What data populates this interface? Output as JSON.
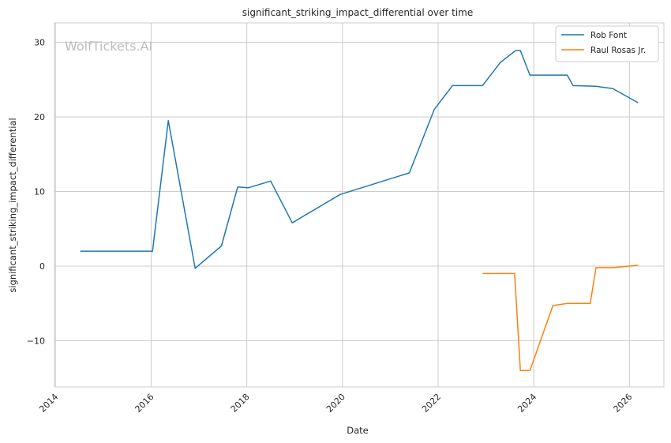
{
  "chart_data": {
    "type": "line",
    "title": "significant_striking_impact_differential over time",
    "xlabel": "Date",
    "ylabel": "significant_striking_impact_differential",
    "watermark": "WolfTickets.AI",
    "xlim": [
      2013.98,
      2026.72
    ],
    "ylim": [
      -16.2,
      32.6
    ],
    "x_ticks": [
      2014,
      2016,
      2018,
      2020,
      2022,
      2024,
      2026
    ],
    "y_ticks": [
      -10,
      0,
      10,
      20,
      30
    ],
    "grid": true,
    "legend_position": "top-right",
    "series": [
      {
        "name": "Rob Font",
        "color": "#1f77b4",
        "x": [
          2014.52,
          2016.03,
          2016.36,
          2016.92,
          2017.47,
          2017.81,
          2018.03,
          2018.5,
          2018.95,
          2019.95,
          2021.4,
          2021.92,
          2022.3,
          2022.93,
          2023.3,
          2023.62,
          2023.72,
          2023.92,
          2024.2,
          2024.7,
          2024.82,
          2025.3,
          2025.65,
          2026.18
        ],
        "values": [
          2.0,
          2.0,
          19.5,
          -0.3,
          2.7,
          10.6,
          10.5,
          11.4,
          5.8,
          9.6,
          12.5,
          21.0,
          24.2,
          24.2,
          27.3,
          28.9,
          28.9,
          25.6,
          25.6,
          25.6,
          24.2,
          24.1,
          23.8,
          21.9
        ]
      },
      {
        "name": "Raul Rosas Jr.",
        "color": "#ff7f0e",
        "x": [
          2022.93,
          2023.6,
          2023.72,
          2023.92,
          2024.4,
          2024.7,
          2025.18,
          2025.3,
          2025.65,
          2026.18
        ],
        "values": [
          -1.0,
          -1.0,
          -14.0,
          -14.0,
          -5.3,
          -5.0,
          -5.0,
          -0.2,
          -0.2,
          0.1
        ]
      }
    ]
  }
}
